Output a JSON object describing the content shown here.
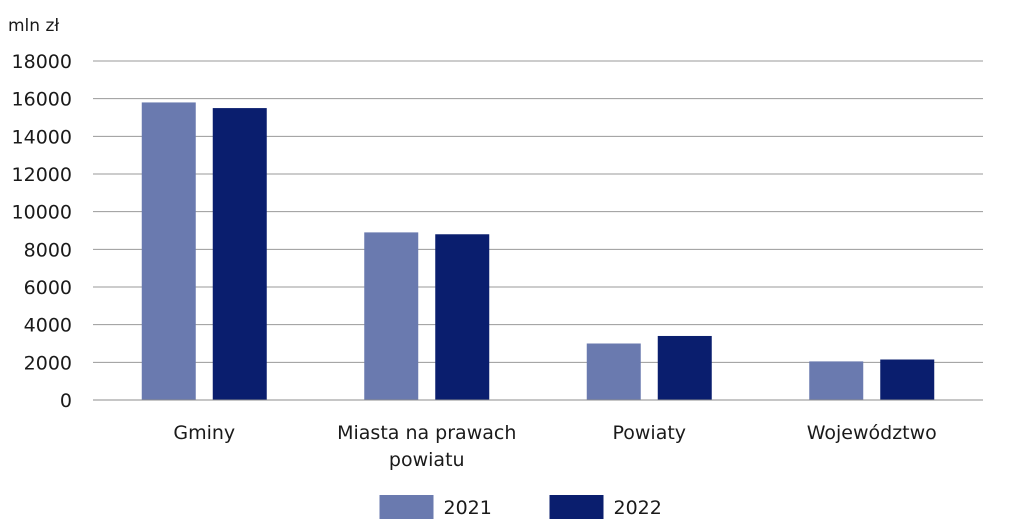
{
  "chart_data": {
    "type": "bar",
    "ylabel": "mln zł",
    "categories": [
      [
        "Gminy"
      ],
      [
        "Miasta na prawach",
        "powiatu"
      ],
      [
        "Powiaty"
      ],
      [
        "Województwo"
      ]
    ],
    "series": [
      {
        "name": "2021",
        "color": "#6a7aaf",
        "values": [
          15800,
          8900,
          3000,
          2050
        ]
      },
      {
        "name": "2022",
        "color": "#0a1e6e",
        "values": [
          15500,
          8800,
          3400,
          2150
        ]
      }
    ],
    "ylim": [
      0,
      18000
    ],
    "yticks": [
      0,
      2000,
      4000,
      6000,
      8000,
      10000,
      12000,
      14000,
      16000,
      18000
    ],
    "grid": true,
    "legend": "bottom-center"
  }
}
